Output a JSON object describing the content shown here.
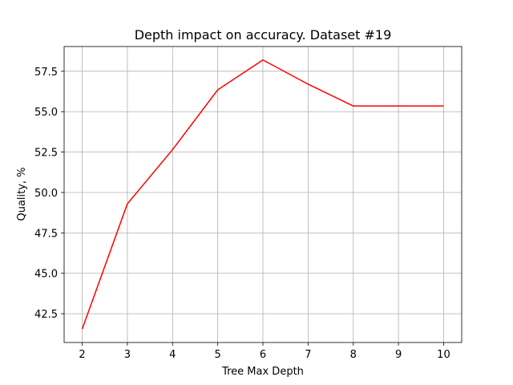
{
  "chart_data": {
    "type": "line",
    "title": "Depth impact on accuracy. Dataset #19",
    "xlabel": "Tree Max Depth",
    "ylabel": "Quality, %",
    "x": [
      2,
      3,
      4,
      5,
      6,
      7,
      8,
      9,
      10
    ],
    "series": [
      {
        "values": [
          41.55,
          49.3,
          52.65,
          56.35,
          58.2,
          56.7,
          55.35,
          55.35,
          55.35
        ],
        "color": "#ff0000"
      }
    ],
    "xticks": [
      "2",
      "3",
      "4",
      "5",
      "6",
      "7",
      "8",
      "9",
      "10"
    ],
    "yticks": [
      "42.5",
      "45.0",
      "47.5",
      "50.0",
      "52.5",
      "55.0",
      "57.5"
    ],
    "xlim": [
      1.6,
      10.4
    ],
    "ylim": [
      40.72,
      59.03
    ],
    "grid": true
  }
}
